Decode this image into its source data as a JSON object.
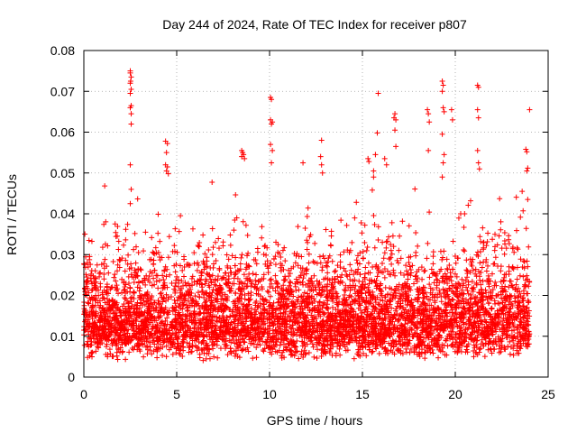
{
  "chart_data": {
    "type": "scatter",
    "title": "Day 244 of 2024, Rate Of TEC Index for receiver p807",
    "xlabel": "GPS time / hours",
    "ylabel": "ROTI / TECUs",
    "xlim": [
      0,
      25
    ],
    "ylim": [
      0,
      0.08
    ],
    "x_ticks": [
      0,
      5,
      10,
      15,
      20,
      25
    ],
    "y_ticks": [
      0,
      0.01,
      0.02,
      0.03,
      0.04,
      0.05,
      0.06,
      0.07,
      0.08
    ],
    "x_tick_labels": [
      "0",
      "5",
      "10",
      "15",
      "20",
      "25"
    ],
    "y_tick_labels": [
      "0",
      "0.01",
      "0.02",
      "0.03",
      "0.04",
      "0.05",
      "0.06",
      "0.07",
      "0.08"
    ],
    "grid": true,
    "marker": "+",
    "color": "#ff0000",
    "x_data_range_hours": [
      0,
      24
    ],
    "typical_roti_range": [
      0.004,
      0.025
    ],
    "series": [
      {
        "name": "ROTI",
        "points": [
          [
            2.5,
            0.075
          ],
          [
            2.5,
            0.0745
          ],
          [
            2.55,
            0.0735
          ],
          [
            2.52,
            0.0725
          ],
          [
            2.5,
            0.072
          ],
          [
            2.55,
            0.0705
          ],
          [
            2.5,
            0.0695
          ],
          [
            2.55,
            0.0665
          ],
          [
            2.5,
            0.066
          ],
          [
            2.55,
            0.0645
          ],
          [
            2.55,
            0.062
          ],
          [
            2.5,
            0.052
          ],
          [
            2.55,
            0.046
          ],
          [
            2.5,
            0.0425
          ],
          [
            4.4,
            0.0578
          ],
          [
            4.5,
            0.0572
          ],
          [
            4.45,
            0.055
          ],
          [
            4.4,
            0.052
          ],
          [
            4.5,
            0.0515
          ],
          [
            4.45,
            0.0505
          ],
          [
            4.55,
            0.0498
          ],
          [
            8.5,
            0.0555
          ],
          [
            8.55,
            0.055
          ],
          [
            8.6,
            0.0545
          ],
          [
            8.5,
            0.054
          ],
          [
            8.65,
            0.0535
          ],
          [
            10.05,
            0.0685
          ],
          [
            10.1,
            0.068
          ],
          [
            10.05,
            0.063
          ],
          [
            10.15,
            0.0625
          ],
          [
            10.1,
            0.062
          ],
          [
            10.05,
            0.057
          ],
          [
            10.15,
            0.0555
          ],
          [
            10.1,
            0.0525
          ],
          [
            11.8,
            0.0525
          ],
          [
            12.8,
            0.058
          ],
          [
            12.75,
            0.054
          ],
          [
            12.8,
            0.052
          ],
          [
            12.85,
            0.05
          ],
          [
            15.3,
            0.0535
          ],
          [
            15.35,
            0.0528
          ],
          [
            15.6,
            0.0505
          ],
          [
            15.6,
            0.049
          ],
          [
            15.7,
            0.0545
          ],
          [
            15.85,
            0.0695
          ],
          [
            15.8,
            0.0598
          ],
          [
            16.2,
            0.0535
          ],
          [
            16.3,
            0.052
          ],
          [
            16.75,
            0.0645
          ],
          [
            16.7,
            0.0635
          ],
          [
            16.8,
            0.063
          ],
          [
            16.75,
            0.0605
          ],
          [
            16.8,
            0.0565
          ],
          [
            18.5,
            0.0655
          ],
          [
            18.55,
            0.0645
          ],
          [
            18.6,
            0.0625
          ],
          [
            18.55,
            0.0555
          ],
          [
            19.3,
            0.0725
          ],
          [
            19.35,
            0.0715
          ],
          [
            19.3,
            0.07
          ],
          [
            19.35,
            0.066
          ],
          [
            19.4,
            0.065
          ],
          [
            19.3,
            0.0595
          ],
          [
            19.4,
            0.0545
          ],
          [
            19.35,
            0.0525
          ],
          [
            19.3,
            0.049
          ],
          [
            19.8,
            0.0655
          ],
          [
            19.85,
            0.063
          ],
          [
            21.2,
            0.0715
          ],
          [
            21.25,
            0.071
          ],
          [
            21.2,
            0.0655
          ],
          [
            21.25,
            0.0635
          ],
          [
            21.2,
            0.0555
          ],
          [
            21.25,
            0.0525
          ],
          [
            21.3,
            0.051
          ],
          [
            23.8,
            0.0558
          ],
          [
            23.85,
            0.0552
          ],
          [
            23.9,
            0.0512
          ],
          [
            23.85,
            0.0505
          ],
          [
            24.0,
            0.0655
          ],
          [
            23.6,
            0.0455
          ],
          [
            23.9,
            0.0435
          ]
        ]
      }
    ]
  }
}
